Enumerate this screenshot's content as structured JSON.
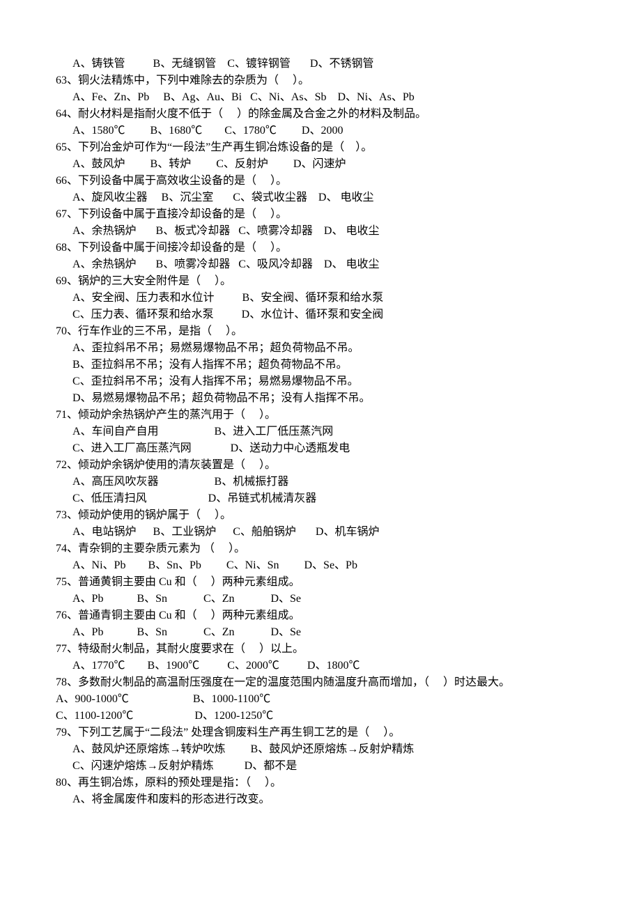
{
  "items": [
    {
      "indent": true,
      "text": "A、铸铁管          B、无缝钢管    C、镀锌钢管       D、不锈钢管"
    },
    {
      "indent": false,
      "text": "63、铜火法精炼中，下列中难除去的杂质为（     ）。"
    },
    {
      "indent": true,
      "text": "A、Fe、Zn、Pb     B、Ag、Au、Bi   C、Ni、As、Sb    D、Ni、As、Pb"
    },
    {
      "indent": false,
      "text": "64、耐火材料是指耐火度不低于（     ）的除金属及合金之外的材料及制品。"
    },
    {
      "indent": true,
      "text": "A、1580℃         B、1680℃        C、1780℃         D、2000"
    },
    {
      "indent": false,
      "text": "65、下列冶金炉可作为“一段法”生产再生铜冶炼设备的是（    ）。"
    },
    {
      "indent": true,
      "text": "A、鼓风炉         B、转炉         C、反射炉         D、闪速炉"
    },
    {
      "indent": false,
      "text": "66、下列设备中属于高效收尘设备的是（     ）。"
    },
    {
      "indent": true,
      "text": "A、旋风收尘器     B、沉尘室       C、袋式收尘器    D、 电收尘"
    },
    {
      "indent": false,
      "text": "67、下列设备中属于直接冷却设备的是（     ）。"
    },
    {
      "indent": true,
      "text": "A、余热锅炉       B、板式冷却器   C、喷雾冷却器    D、 电收尘"
    },
    {
      "indent": false,
      "text": "68、下列设备中属于间接冷却设备的是（     ）。"
    },
    {
      "indent": true,
      "text": "A、余热锅炉       B、喷雾冷却器   C、吸风冷却器    D、 电收尘"
    },
    {
      "indent": false,
      "text": "69、锅炉的三大安全附件是（     ）。"
    },
    {
      "indent": true,
      "text": "A、安全阀、压力表和水位计          B、安全阀、循环泵和给水泵"
    },
    {
      "indent": true,
      "text": "C、压力表、循环泵和给水泵          D、水位计、循环泵和安全阀"
    },
    {
      "indent": false,
      "text": "70、行车作业的三不吊，是指（     ）。"
    },
    {
      "indent": true,
      "text": "A、歪拉斜吊不吊；易燃易爆物品不吊；超负荷物品不吊。"
    },
    {
      "indent": true,
      "text": "B、歪拉斜吊不吊；没有人指挥不吊；超负荷物品不吊。"
    },
    {
      "indent": true,
      "text": "C、歪拉斜吊不吊；没有人指挥不吊；易燃易爆物品不吊。"
    },
    {
      "indent": true,
      "text": "D、易燃易爆物品不吊；超负荷物品不吊；没有人指挥不吊。"
    },
    {
      "indent": false,
      "text": "71、倾动炉余热锅炉产生的蒸汽用于（     ）。"
    },
    {
      "indent": true,
      "text": "A、车间自产自用                    B、进入工厂低压蒸汽网"
    },
    {
      "indent": true,
      "text": "C、进入工厂高压蒸汽网              D、送动力中心透瓶发电"
    },
    {
      "indent": false,
      "text": "72、倾动炉余锅炉使用的清灰装置是（     ）。"
    },
    {
      "indent": true,
      "text": "A、高压风吹灰器                    B、机械振打器"
    },
    {
      "indent": true,
      "text": "C、低压清扫风                      D、吊链式机械清灰器"
    },
    {
      "indent": false,
      "text": "73、倾动炉使用的锅炉属于（     ）。"
    },
    {
      "indent": true,
      "text": "A、电站锅炉      B、工业锅炉      C、船舶锅炉       D、机车锅炉"
    },
    {
      "indent": false,
      "text": "74、青杂铜的主要杂质元素为 （     ）。"
    },
    {
      "indent": true,
      "text": "A、Ni、Pb        B、Sn、Pb         C、Ni、Sn         D、Se、Pb"
    },
    {
      "indent": false,
      "text": "75、普通黄铜主要由 Cu 和（     ）两种元素组成。"
    },
    {
      "indent": true,
      "text": "A、Pb            B、Sn             C、Zn             D、Se"
    },
    {
      "indent": false,
      "text": "76、普通青铜主要由 Cu 和（     ）两种元素组成。"
    },
    {
      "indent": true,
      "text": "A、Pb            B、Sn             C、Zn             D、Se"
    },
    {
      "indent": false,
      "text": "77、特级耐火制品，其耐火度要求在（     ）以上。"
    },
    {
      "indent": true,
      "text": "A、1770℃        B、1900℃          C、2000℃          D、1800℃"
    },
    {
      "indent": false,
      "text": "78、多数耐火制品的高温耐压强度在一定的温度范围内随温度升高而增加，（     ）时达最大。"
    },
    {
      "indent": false,
      "text": "A、900-1000℃                       B、1000-1100℃"
    },
    {
      "indent": false,
      "text": "C、1100-1200℃                      D、1200-1250℃"
    },
    {
      "indent": false,
      "text": "79、下列工艺属于“二段法” 处理含铜废料生产再生铜工艺的是（     ）。"
    },
    {
      "indent": true,
      "text": "A、鼓风炉还原熔炼→转炉吹炼         B、鼓风炉还原熔炼→反射炉精炼"
    },
    {
      "indent": true,
      "text": "C、闪速炉熔炼→反射炉精炼           D、都不是"
    },
    {
      "indent": false,
      "text": "80、再生铜冶炼，原料的预处理是指：（     ）。"
    },
    {
      "indent": true,
      "text": "A、将金属废件和废料的形态进行改变。"
    }
  ]
}
